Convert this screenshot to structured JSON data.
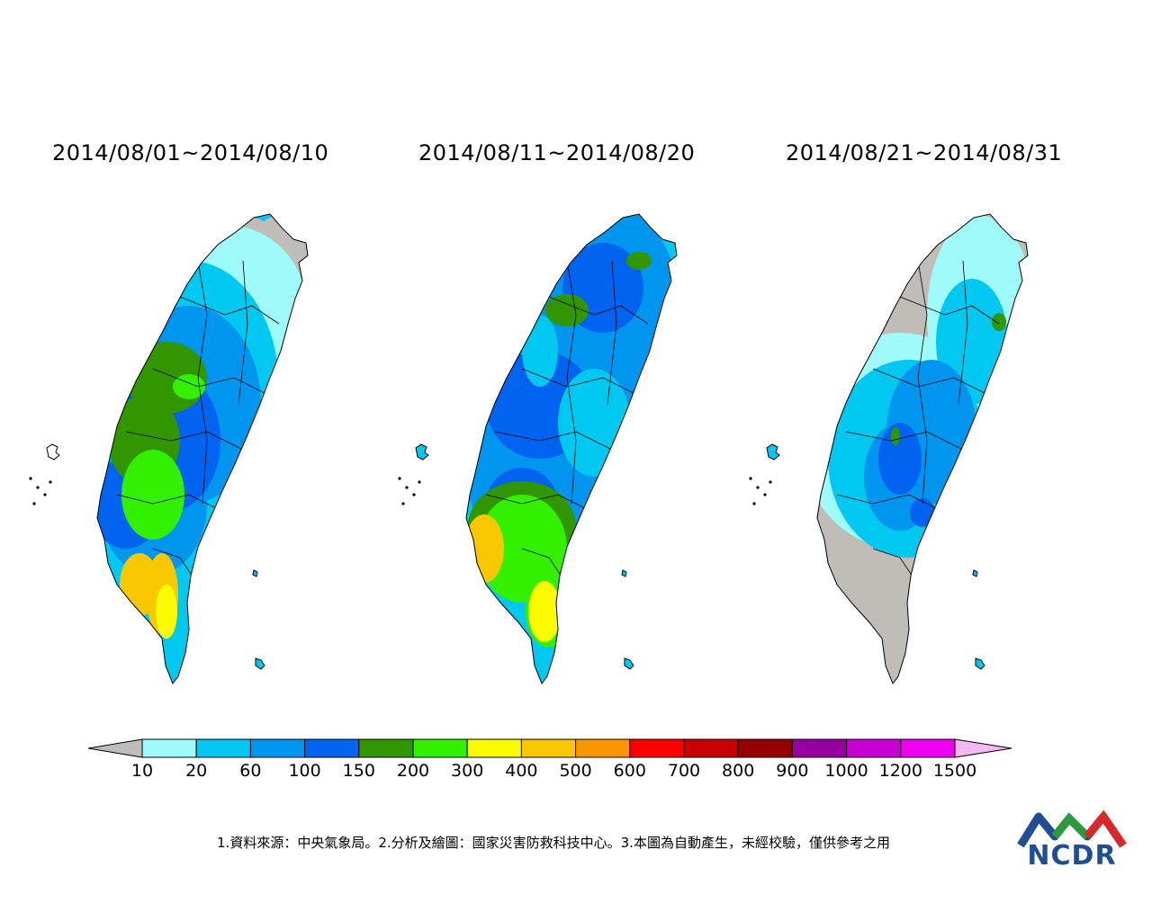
{
  "periods": [
    {
      "title": "2014/08/01~2014/08/10"
    },
    {
      "title": "2014/08/11~2014/08/20"
    },
    {
      "title": "2014/08/21~2014/08/31"
    }
  ],
  "colorbar": {
    "labels": [
      "10",
      "20",
      "60",
      "100",
      "150",
      "200",
      "300",
      "400",
      "500",
      "600",
      "700",
      "800",
      "900",
      "1000",
      "1200",
      "1500"
    ],
    "under_color": "#c0bdb9",
    "over_color": "#f4b8f4",
    "colors": [
      "#9ffafa",
      "#00c8f0",
      "#0096f0",
      "#0064f0",
      "#329600",
      "#32f000",
      "#fafa00",
      "#fac800",
      "#fa9600",
      "#fa0000",
      "#c80000",
      "#960000",
      "#9600a0",
      "#c800d2",
      "#f000f0"
    ]
  },
  "footnote": "1.資料來源：中央氣象局。2.分析及繪圖：國家災害防救科技中心。3.本圖為自動產生，未經校驗，僅供參考之用",
  "logo": {
    "text": "NCDR",
    "colors": [
      "#1e4e96",
      "#2a9a3c",
      "#d8282a"
    ]
  }
}
